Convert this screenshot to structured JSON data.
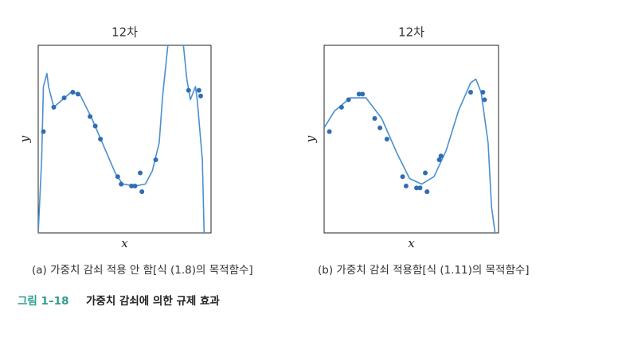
{
  "chart_data": [
    {
      "type": "scatter",
      "title": "12차",
      "xlabel": "x",
      "ylabel": "y",
      "caption": "(a) 가중치 감쇠 적용 안 함[식 (1.8)의 목적함수]",
      "xlim": [
        0,
        1
      ],
      "ylim": [
        0,
        1
      ],
      "point_color": "#2f6db5",
      "curve_color": "#4a8fd0",
      "x": [
        0.03,
        0.09,
        0.15,
        0.2,
        0.23,
        0.3,
        0.33,
        0.36,
        0.46,
        0.48,
        0.54,
        0.56,
        0.59,
        0.6,
        0.68,
        0.87,
        0.93,
        0.94
      ],
      "y": [
        0.54,
        0.67,
        0.72,
        0.75,
        0.74,
        0.62,
        0.57,
        0.5,
        0.3,
        0.26,
        0.25,
        0.25,
        0.32,
        0.22,
        0.39,
        0.76,
        0.76,
        0.73
      ],
      "curve": {
        "x": [
          0,
          0.02,
          0.03,
          0.05,
          0.06,
          0.09,
          0.19,
          0.24,
          0.31,
          0.38,
          0.45,
          0.49,
          0.56,
          0.62,
          0.66,
          0.7,
          0.72,
          0.75,
          null,
          0.84,
          0.86,
          0.88,
          0.91,
          0.92,
          0.95,
          0.96
        ],
        "y": [
          0,
          0.39,
          0.78,
          0.85,
          0.78,
          0.67,
          0.75,
          0.74,
          0.61,
          0.46,
          0.31,
          0.26,
          0.25,
          0.26,
          0.33,
          0.48,
          0.73,
          1.0,
          null,
          1.0,
          0.82,
          0.71,
          0.78,
          0.71,
          0.39,
          0
        ]
      }
    },
    {
      "type": "scatter",
      "title": "12차",
      "xlabel": "x",
      "ylabel": "y",
      "caption": "(b) 가중치 감쇠 적용함[식 (1.11)의 목적함수]",
      "xlim": [
        0,
        1
      ],
      "ylim": [
        0,
        1
      ],
      "point_color": "#2f6db5",
      "curve_color": "#4a8fd0",
      "x": [
        0.03,
        0.1,
        0.14,
        0.2,
        0.22,
        0.29,
        0.32,
        0.36,
        0.45,
        0.47,
        0.53,
        0.55,
        0.58,
        0.59,
        0.66,
        0.67,
        0.84,
        0.91,
        0.92
      ],
      "y": [
        0.54,
        0.67,
        0.71,
        0.74,
        0.74,
        0.61,
        0.56,
        0.5,
        0.3,
        0.25,
        0.24,
        0.24,
        0.32,
        0.22,
        0.39,
        0.41,
        0.75,
        0.75,
        0.71
      ],
      "curve": {
        "x": [
          0,
          0.06,
          0.15,
          0.24,
          0.33,
          0.42,
          0.49,
          0.56,
          0.63,
          0.7,
          0.77,
          0.84,
          0.87,
          0.9,
          0.94,
          0.96,
          0.98
        ],
        "y": [
          0.56,
          0.65,
          0.72,
          0.72,
          0.61,
          0.42,
          0.29,
          0.26,
          0.3,
          0.44,
          0.65,
          0.8,
          0.82,
          0.75,
          0.48,
          0.14,
          0
        ]
      }
    }
  ],
  "figure_caption": {
    "label": "그림 1–18",
    "text": "가중치 감쇠에 의한 규제 효과"
  }
}
